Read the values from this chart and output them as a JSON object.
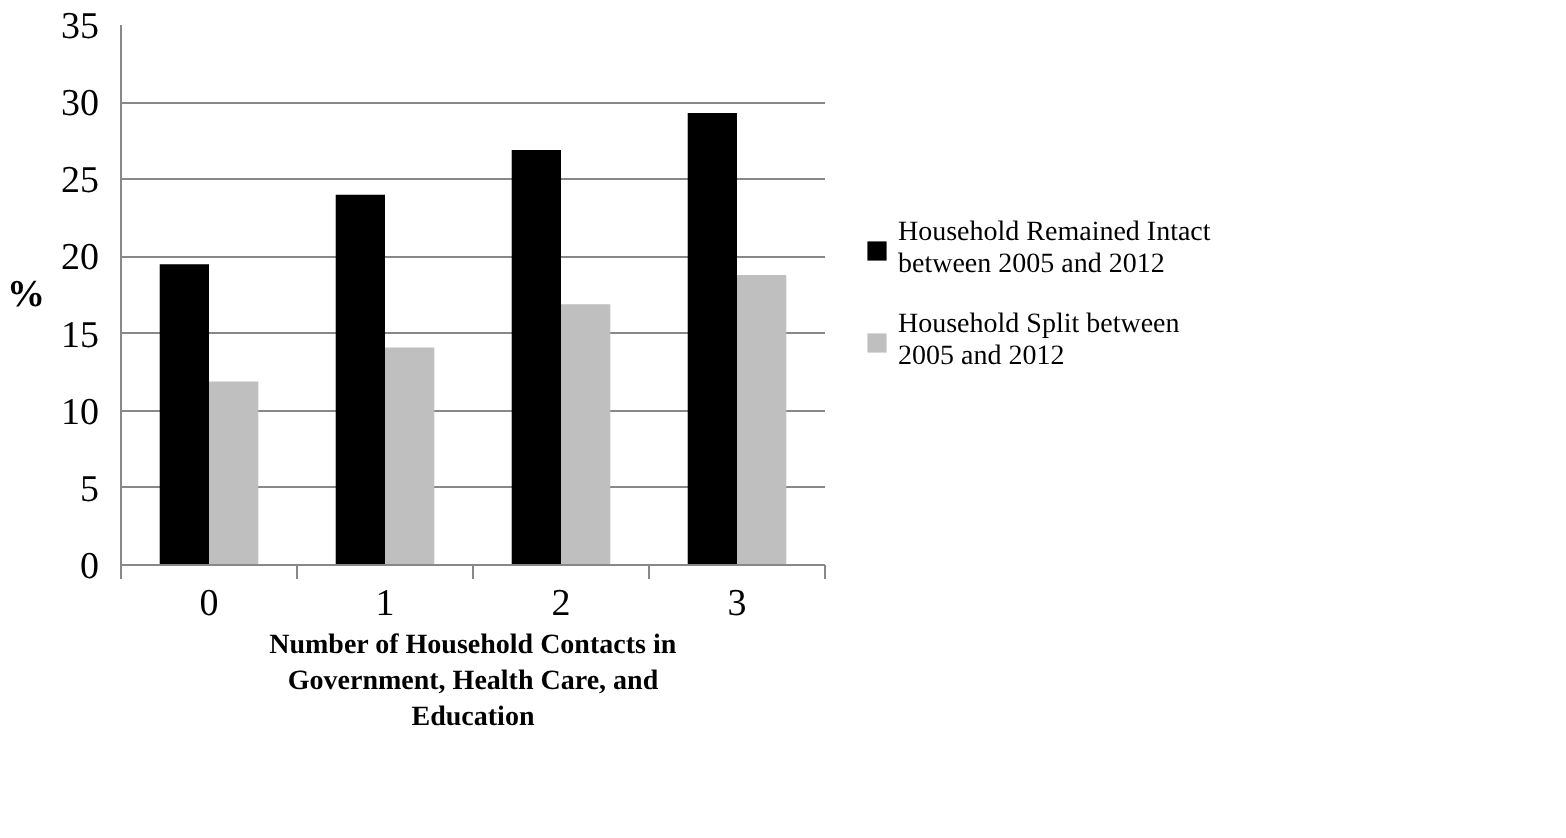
{
  "chart_data": {
    "type": "bar",
    "xlabel": "Number of Household Contacts in Government, Health Care, and Education",
    "ylabel": "%",
    "categories": [
      "0",
      "1",
      "2",
      "3"
    ],
    "series": [
      {
        "name": "Household Remained Intact between 2005 and 2012",
        "color": "#000000",
        "values": [
          19.5,
          24.0,
          26.9,
          29.3
        ]
      },
      {
        "name": "Household Split between 2005 and 2012",
        "color": "#bfbfbf",
        "values": [
          11.9,
          14.1,
          16.9,
          18.8
        ]
      }
    ],
    "ylim": [
      0,
      35
    ],
    "yticks": [
      0,
      5,
      10,
      15,
      20,
      25,
      30,
      35
    ],
    "grid": "y",
    "legend": "right"
  }
}
